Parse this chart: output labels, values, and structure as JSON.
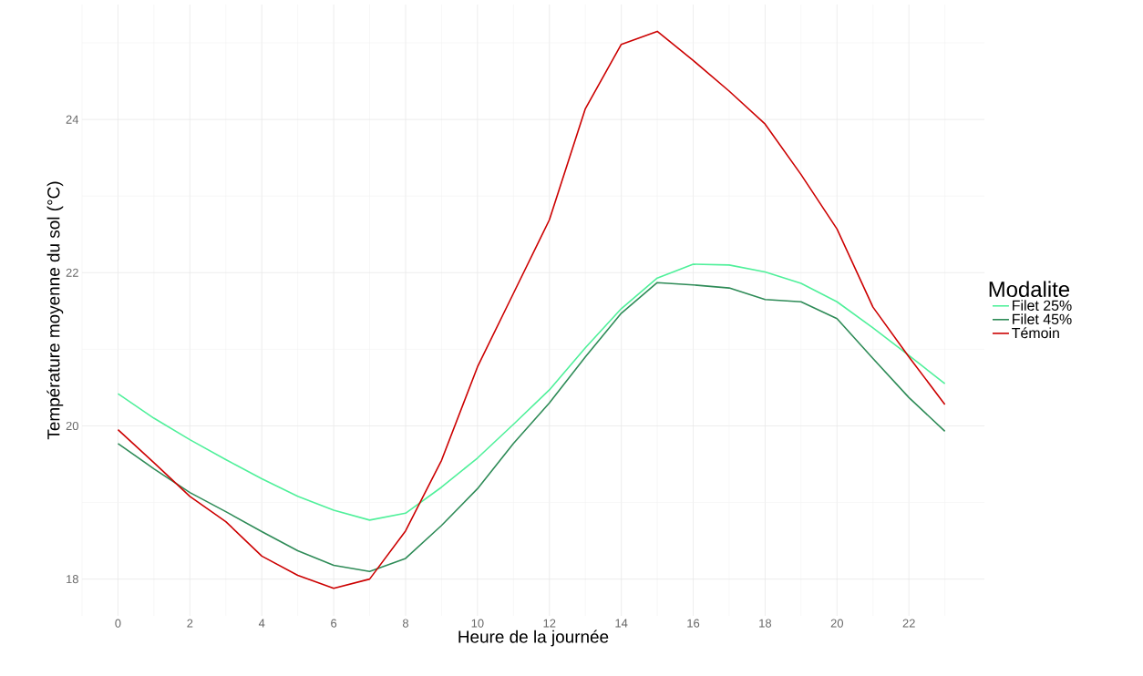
{
  "chart_data": {
    "type": "line",
    "xlabel": "Heure de la journée",
    "ylabel": "Température moyenne du sol (°C)",
    "legend_title": "Modalite",
    "legend": "right",
    "grid": true,
    "x": [
      0,
      1,
      2,
      3,
      4,
      5,
      6,
      7,
      8,
      9,
      10,
      11,
      12,
      13,
      14,
      15,
      16,
      17,
      18,
      19,
      20,
      21,
      22,
      23
    ],
    "series": [
      {
        "name": "Filet 25%",
        "color": "#4ff09a",
        "values": [
          20.42,
          20.1,
          19.82,
          19.56,
          19.31,
          19.08,
          18.9,
          18.77,
          18.86,
          19.2,
          19.58,
          20.02,
          20.47,
          21.02,
          21.53,
          21.93,
          22.11,
          22.1,
          22.01,
          21.86,
          21.62,
          21.28,
          20.92,
          20.55
        ]
      },
      {
        "name": "Filet 45%",
        "color": "#2e8b57",
        "values": [
          19.77,
          19.44,
          19.13,
          18.88,
          18.62,
          18.37,
          18.18,
          18.1,
          18.27,
          18.7,
          19.18,
          19.77,
          20.3,
          20.9,
          21.47,
          21.87,
          21.84,
          21.8,
          21.65,
          21.62,
          21.4,
          20.88,
          20.37,
          19.93
        ]
      },
      {
        "name": "Témoin",
        "color": "#cc0000",
        "values": [
          19.95,
          19.52,
          19.08,
          18.75,
          18.3,
          18.05,
          17.88,
          18.0,
          18.63,
          19.55,
          20.77,
          21.73,
          22.69,
          24.14,
          24.98,
          25.15,
          24.77,
          24.37,
          23.94,
          23.28,
          22.57,
          21.55,
          20.9,
          20.28
        ]
      }
    ],
    "xlim": [
      -1,
      24.1
    ],
    "ylim": [
      17.52,
      25.5
    ],
    "xticks": [
      0,
      2,
      4,
      6,
      8,
      10,
      12,
      14,
      16,
      18,
      20,
      22
    ],
    "yticks": [
      18,
      20,
      22,
      24
    ]
  }
}
